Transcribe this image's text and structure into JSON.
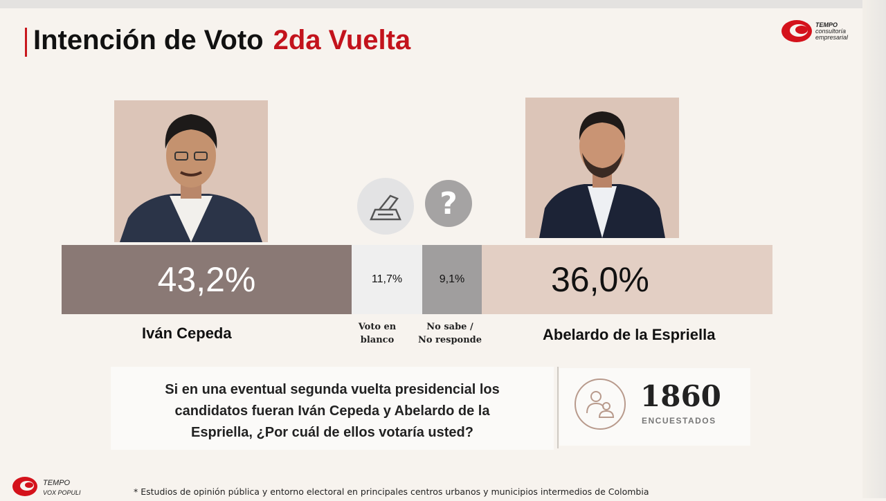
{
  "header": {
    "title_black": "Intención de Voto",
    "title_red": "2da Vuelta"
  },
  "logo": {
    "line1": "TEMPO",
    "line2": "consultoría",
    "line3": "empresarial"
  },
  "chart_data": {
    "type": "bar",
    "orientation": "horizontal-stacked",
    "categories": [
      "Iván Cepeda",
      "Voto en blanco",
      "No sabe / No responde",
      "Abelardo de la Espriella"
    ],
    "values": [
      43.2,
      11.7,
      9.1,
      36.0
    ],
    "value_labels": [
      "43,2%",
      "11,7%",
      "9,1%",
      "36,0%"
    ],
    "colors": [
      "#8a7975",
      "#efefef",
      "#a09e9e",
      "#e3cfc4"
    ]
  },
  "candidates": {
    "left": {
      "name": "Iván Cepeda"
    },
    "right": {
      "name": "Abelardo de la Espriella"
    }
  },
  "labels": {
    "blanco_line1": "Voto en",
    "blanco_line2": "blanco",
    "ns_line1": "No sabe /",
    "ns_line2": "No responde"
  },
  "question": {
    "line1": "Si en una eventual segunda vuelta presidencial los",
    "line2": "candidatos fueran Iván Cepeda y Abelardo de la",
    "line3": "Espriella, ¿Por cuál de ellos votaría usted?"
  },
  "sample": {
    "count": "1860",
    "label": "ENCUESTADOS"
  },
  "footer": {
    "logo_line1": "TEMPO",
    "logo_line2": "VOX POPULI",
    "note": "* Estudios de opinión pública y entorno electoral en principales centros urbanos y municipios intermedios de Colombia"
  },
  "icons": {
    "ballot": "ballot-box-icon",
    "question": "question-mark-icon",
    "people": "people-icon"
  }
}
